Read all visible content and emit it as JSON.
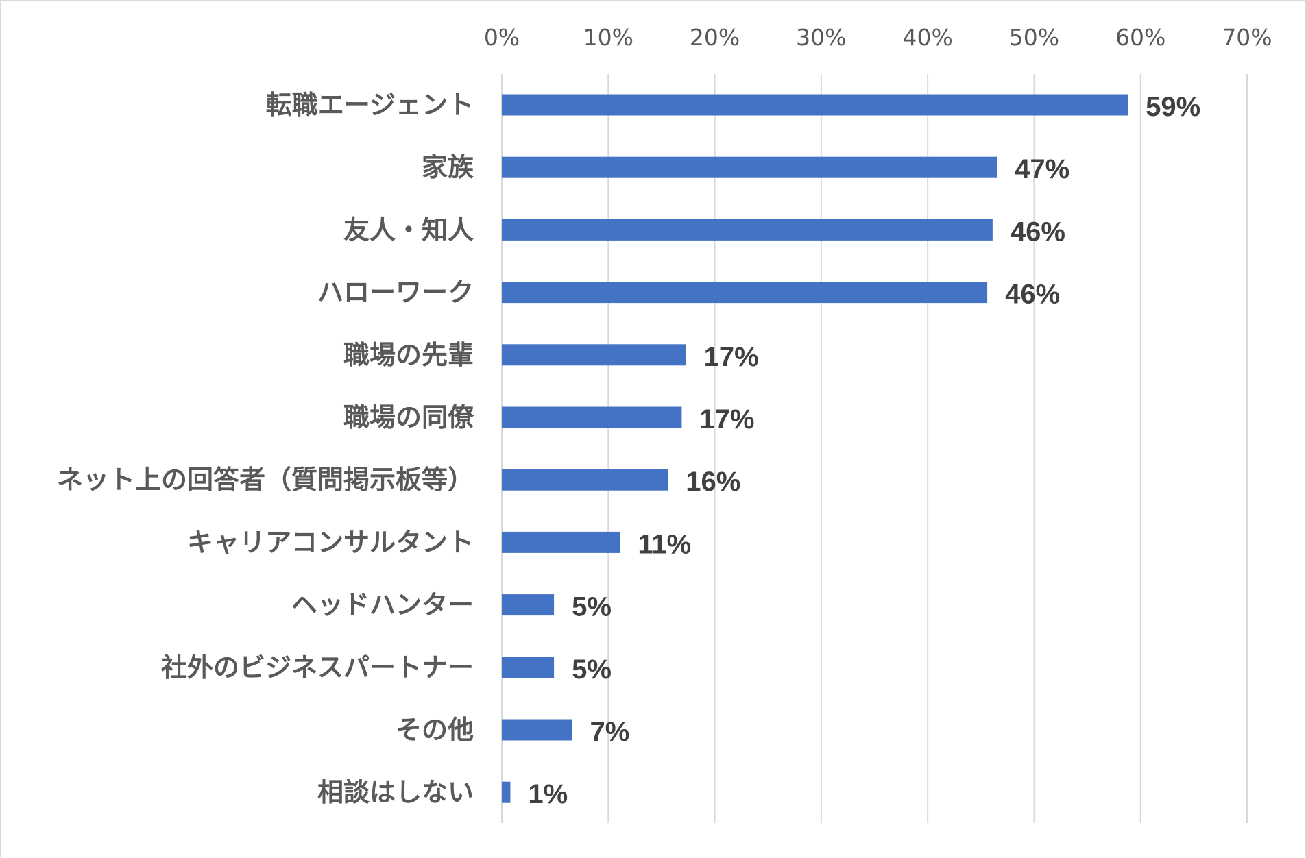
{
  "chart_data": {
    "type": "bar",
    "orientation": "horizontal",
    "title": "",
    "xlabel": "",
    "ylabel": "",
    "xlim": [
      0,
      70
    ],
    "x_ticks": [
      "0%",
      "10%",
      "20%",
      "30%",
      "40%",
      "50%",
      "60%",
      "70%"
    ],
    "grid": true,
    "bar_color": "#4472C4",
    "categories": [
      "転職エージェント",
      "家族",
      "友人・知人",
      "ハローワーク",
      "職場の先輩",
      "職場の同僚",
      "ネット上の回答者（質問掲示板等）",
      "キャリアコンサルタント",
      "ヘッドハンター",
      "社外のビジネスパートナー",
      "その他",
      "相談はしない"
    ],
    "values": [
      59,
      47,
      46,
      46,
      17,
      17,
      16,
      11,
      5,
      5,
      7,
      1
    ],
    "data_labels": [
      "59%",
      "47%",
      "46%",
      "46%",
      "17%",
      "17%",
      "16%",
      "11%",
      "5%",
      "5%",
      "7%",
      "1%"
    ],
    "plot_values": [
      58.8,
      46.5,
      46.1,
      45.6,
      17.3,
      16.9,
      15.6,
      11.1,
      4.9,
      4.9,
      6.6,
      0.8
    ]
  }
}
